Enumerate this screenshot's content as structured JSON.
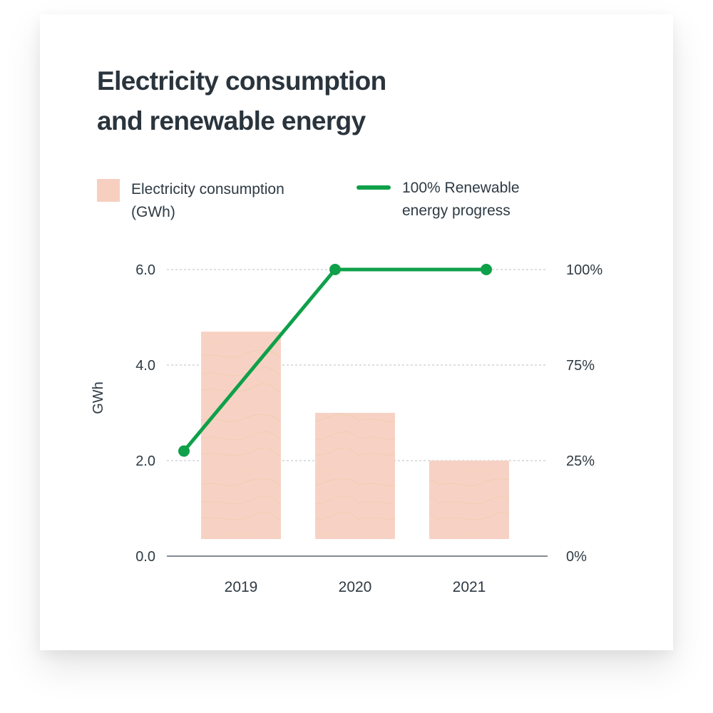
{
  "title_line1": "Electricity consumption",
  "title_line2": "and renewable energy",
  "colors": {
    "bar": "#f7d2c4",
    "bar_texture": "#e9c9a4",
    "line": "#0fa04a",
    "text": "#2e3a44",
    "grid": "#b9bec4",
    "axis": "#5b6670"
  },
  "chart_data": {
    "type": "bar",
    "categories": [
      "2019",
      "2020",
      "2021"
    ],
    "series": [
      {
        "name": "Electricity consumption (GWh)",
        "type": "bar",
        "axis": "left",
        "values": [
          4.7,
          3.0,
          2.0
        ]
      },
      {
        "name": "100% Renewable energy progress",
        "type": "line",
        "axis": "right",
        "values": [
          30,
          100,
          100
        ]
      }
    ],
    "ylabel": "GWh",
    "ylim": [
      0,
      6
    ],
    "yticks": [
      "0.0",
      "2.0",
      "4.0",
      "6.0"
    ],
    "y2ticks": [
      "0%",
      "25%",
      "75%",
      "100%"
    ],
    "grid": true,
    "legend": "top"
  },
  "legend": {
    "bar_label_line1": "Electricity consumption",
    "bar_label_line2": "(GWh)",
    "line_label_line1": "100% Renewable",
    "line_label_line2": "energy progress"
  }
}
